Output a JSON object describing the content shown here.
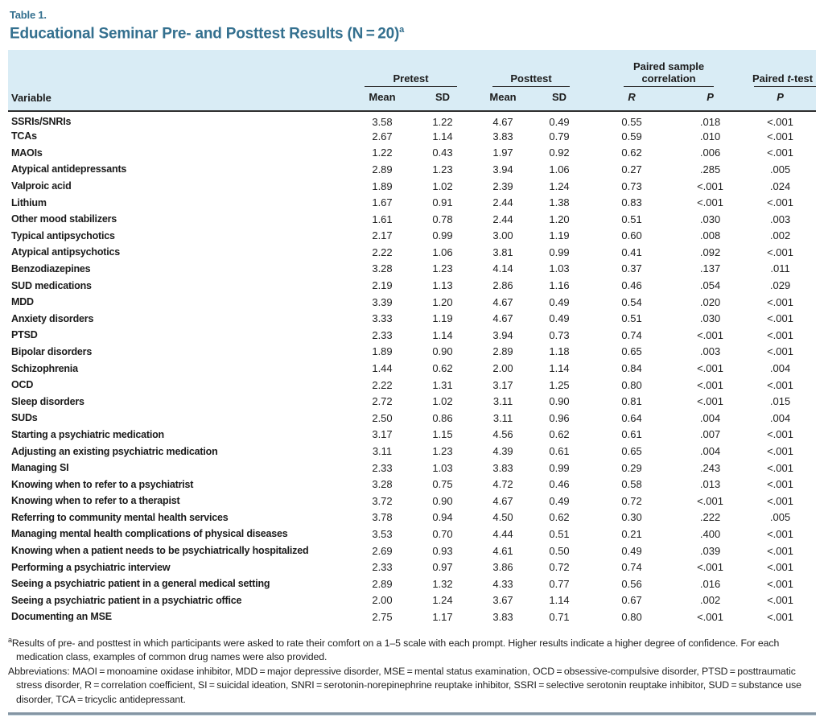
{
  "table_label": "Table 1.",
  "title": {
    "text": "Educational Seminar Pre- and Posttest Results (N = 20)",
    "sup": "a"
  },
  "header": {
    "variable": "Variable",
    "groups": [
      "Pretest",
      "Posttest",
      "Paired sample correlation",
      {
        "pre": "Paired ",
        "it": "t",
        "post": "-test"
      }
    ],
    "subcols": [
      "Mean",
      "SD",
      "Mean",
      "SD",
      "R",
      "P",
      "P"
    ]
  },
  "table": {
    "rows": [
      {
        "variable": "SSRIs/SNRIs",
        "values": [
          "3.58",
          "1.22",
          "4.67",
          "0.49",
          "0.55",
          ".018",
          "<.001"
        ]
      },
      {
        "variable": "TCAs",
        "values": [
          "2.67",
          "1.14",
          "3.83",
          "0.79",
          "0.59",
          ".010",
          "<.001"
        ]
      },
      {
        "variable": "MAOIs",
        "values": [
          "1.22",
          "0.43",
          "1.97",
          "0.92",
          "0.62",
          ".006",
          "<.001"
        ]
      },
      {
        "variable": "Atypical antidepressants",
        "values": [
          "2.89",
          "1.23",
          "3.94",
          "1.06",
          "0.27",
          ".285",
          ".005"
        ]
      },
      {
        "variable": "Valproic acid",
        "values": [
          "1.89",
          "1.02",
          "2.39",
          "1.24",
          "0.73",
          "<.001",
          ".024"
        ]
      },
      {
        "variable": "Lithium",
        "values": [
          "1.67",
          "0.91",
          "2.44",
          "1.38",
          "0.83",
          "<.001",
          "<.001"
        ]
      },
      {
        "variable": "Other mood stabilizers",
        "values": [
          "1.61",
          "0.78",
          "2.44",
          "1.20",
          "0.51",
          ".030",
          ".003"
        ]
      },
      {
        "variable": "Typical antipsychotics",
        "values": [
          "2.17",
          "0.99",
          "3.00",
          "1.19",
          "0.60",
          ".008",
          ".002"
        ]
      },
      {
        "variable": "Atypical antipsychotics",
        "values": [
          "2.22",
          "1.06",
          "3.81",
          "0.99",
          "0.41",
          ".092",
          "<.001"
        ]
      },
      {
        "variable": "Benzodiazepines",
        "values": [
          "3.28",
          "1.23",
          "4.14",
          "1.03",
          "0.37",
          ".137",
          ".011"
        ]
      },
      {
        "variable": "SUD medications",
        "values": [
          "2.19",
          "1.13",
          "2.86",
          "1.16",
          "0.46",
          ".054",
          ".029"
        ]
      },
      {
        "variable": "MDD",
        "values": [
          "3.39",
          "1.20",
          "4.67",
          "0.49",
          "0.54",
          ".020",
          "<.001"
        ]
      },
      {
        "variable": "Anxiety disorders",
        "values": [
          "3.33",
          "1.19",
          "4.67",
          "0.49",
          "0.51",
          ".030",
          "<.001"
        ]
      },
      {
        "variable": "PTSD",
        "values": [
          "2.33",
          "1.14",
          "3.94",
          "0.73",
          "0.74",
          "<.001",
          "<.001"
        ]
      },
      {
        "variable": "Bipolar disorders",
        "values": [
          "1.89",
          "0.90",
          "2.89",
          "1.18",
          "0.65",
          ".003",
          "<.001"
        ]
      },
      {
        "variable": "Schizophrenia",
        "values": [
          "1.44",
          "0.62",
          "2.00",
          "1.14",
          "0.84",
          "<.001",
          ".004"
        ]
      },
      {
        "variable": "OCD",
        "values": [
          "2.22",
          "1.31",
          "3.17",
          "1.25",
          "0.80",
          "<.001",
          "<.001"
        ]
      },
      {
        "variable": "Sleep disorders",
        "values": [
          "2.72",
          "1.02",
          "3.11",
          "0.90",
          "0.81",
          "<.001",
          ".015"
        ]
      },
      {
        "variable": "SUDs",
        "values": [
          "2.50",
          "0.86",
          "3.11",
          "0.96",
          "0.64",
          ".004",
          ".004"
        ]
      },
      {
        "variable": "Starting a psychiatric medication",
        "values": [
          "3.17",
          "1.15",
          "4.56",
          "0.62",
          "0.61",
          ".007",
          "<.001"
        ]
      },
      {
        "variable": "Adjusting an existing psychiatric medication",
        "values": [
          "3.11",
          "1.23",
          "4.39",
          "0.61",
          "0.65",
          ".004",
          "<.001"
        ]
      },
      {
        "variable": "Managing SI",
        "values": [
          "2.33",
          "1.03",
          "3.83",
          "0.99",
          "0.29",
          ".243",
          "<.001"
        ]
      },
      {
        "variable": "Knowing when to refer to a psychiatrist",
        "values": [
          "3.28",
          "0.75",
          "4.72",
          "0.46",
          "0.58",
          ".013",
          "<.001"
        ]
      },
      {
        "variable": "Knowing when to refer to a therapist",
        "values": [
          "3.72",
          "0.90",
          "4.67",
          "0.49",
          "0.72",
          "<.001",
          "<.001"
        ]
      },
      {
        "variable": "Referring to community mental health services",
        "values": [
          "3.78",
          "0.94",
          "4.50",
          "0.62",
          "0.30",
          ".222",
          ".005"
        ]
      },
      {
        "variable": "Managing mental health complications of physical diseases",
        "values": [
          "3.53",
          "0.70",
          "4.44",
          "0.51",
          "0.21",
          ".400",
          "<.001"
        ]
      },
      {
        "variable": "Knowing when a patient needs to be psychiatrically hospitalized",
        "values": [
          "2.69",
          "0.93",
          "4.61",
          "0.50",
          "0.49",
          ".039",
          "<.001"
        ]
      },
      {
        "variable": "Performing a psychiatric interview",
        "values": [
          "2.33",
          "0.97",
          "3.86",
          "0.72",
          "0.74",
          "<.001",
          "<.001"
        ]
      },
      {
        "variable": "Seeing a psychiatric patient in a general medical setting",
        "values": [
          "2.89",
          "1.32",
          "4.33",
          "0.77",
          "0.56",
          ".016",
          "<.001"
        ]
      },
      {
        "variable": "Seeing a psychiatric patient in a psychiatric office",
        "values": [
          "2.00",
          "1.24",
          "3.67",
          "1.14",
          "0.67",
          ".002",
          "<.001"
        ]
      },
      {
        "variable": "Documenting an MSE",
        "values": [
          "2.75",
          "1.17",
          "3.83",
          "0.71",
          "0.80",
          "<.001",
          "<.001"
        ]
      }
    ]
  },
  "footnotes": {
    "marker": "a",
    "results": "Results of pre- and posttest in which participants were asked to rate their comfort on a 1–5 scale with each prompt. Higher results indicate a higher degree of confidence. For each medication class, examples of common drug names were also provided.",
    "abbreviations": "Abbreviations: MAOI = monoamine oxidase inhibitor, MDD = major depressive disorder, MSE = mental status examination, OCD = obsessive-compulsive disorder, PTSD = posttraumatic stress disorder, R = correlation coefficient, SI = suicidal ideation, SNRI = serotonin-norepinephrine reuptake inhibitor, SSRI = selective serotonin reuptake inhibitor, SUD = substance use disorder, TCA = tricyclic antidepressant."
  },
  "colors": {
    "title_teal": "#34708f",
    "header_bg": "#d9ecf5",
    "rule_dark": "#2e2e2e",
    "bottom_bar": "#8495a3"
  },
  "chart_data": {
    "type": "table",
    "title": "Educational Seminar Pre- and Posttest Results (N = 20)",
    "columns": [
      "Variable",
      "Pretest Mean",
      "Pretest SD",
      "Posttest Mean",
      "Posttest SD",
      "Paired sample correlation R",
      "Paired sample correlation P",
      "Paired t-test P"
    ],
    "rows": [
      [
        "SSRIs/SNRIs",
        "3.58",
        "1.22",
        "4.67",
        "0.49",
        "0.55",
        ".018",
        "<.001"
      ],
      [
        "TCAs",
        "2.67",
        "1.14",
        "3.83",
        "0.79",
        "0.59",
        ".010",
        "<.001"
      ],
      [
        "MAOIs",
        "1.22",
        "0.43",
        "1.97",
        "0.92",
        "0.62",
        ".006",
        "<.001"
      ],
      [
        "Atypical antidepressants",
        "2.89",
        "1.23",
        "3.94",
        "1.06",
        "0.27",
        ".285",
        ".005"
      ],
      [
        "Valproic acid",
        "1.89",
        "1.02",
        "2.39",
        "1.24",
        "0.73",
        "<.001",
        ".024"
      ],
      [
        "Lithium",
        "1.67",
        "0.91",
        "2.44",
        "1.38",
        "0.83",
        "<.001",
        "<.001"
      ],
      [
        "Other mood stabilizers",
        "1.61",
        "0.78",
        "2.44",
        "1.20",
        "0.51",
        ".030",
        ".003"
      ],
      [
        "Typical antipsychotics",
        "2.17",
        "0.99",
        "3.00",
        "1.19",
        "0.60",
        ".008",
        ".002"
      ],
      [
        "Atypical antipsychotics",
        "2.22",
        "1.06",
        "3.81",
        "0.99",
        "0.41",
        ".092",
        "<.001"
      ],
      [
        "Benzodiazepines",
        "3.28",
        "1.23",
        "4.14",
        "1.03",
        "0.37",
        ".137",
        ".011"
      ],
      [
        "SUD medications",
        "2.19",
        "1.13",
        "2.86",
        "1.16",
        "0.46",
        ".054",
        ".029"
      ],
      [
        "MDD",
        "3.39",
        "1.20",
        "4.67",
        "0.49",
        "0.54",
        ".020",
        "<.001"
      ],
      [
        "Anxiety disorders",
        "3.33",
        "1.19",
        "4.67",
        "0.49",
        "0.51",
        ".030",
        "<.001"
      ],
      [
        "PTSD",
        "2.33",
        "1.14",
        "3.94",
        "0.73",
        "0.74",
        "<.001",
        "<.001"
      ],
      [
        "Bipolar disorders",
        "1.89",
        "0.90",
        "2.89",
        "1.18",
        "0.65",
        ".003",
        "<.001"
      ],
      [
        "Schizophrenia",
        "1.44",
        "0.62",
        "2.00",
        "1.14",
        "0.84",
        "<.001",
        ".004"
      ],
      [
        "OCD",
        "2.22",
        "1.31",
        "3.17",
        "1.25",
        "0.80",
        "<.001",
        "<.001"
      ],
      [
        "Sleep disorders",
        "2.72",
        "1.02",
        "3.11",
        "0.90",
        "0.81",
        "<.001",
        ".015"
      ],
      [
        "SUDs",
        "2.50",
        "0.86",
        "3.11",
        "0.96",
        "0.64",
        ".004",
        ".004"
      ],
      [
        "Starting a psychiatric medication",
        "3.17",
        "1.15",
        "4.56",
        "0.62",
        "0.61",
        ".007",
        "<.001"
      ],
      [
        "Adjusting an existing psychiatric medication",
        "3.11",
        "1.23",
        "4.39",
        "0.61",
        "0.65",
        ".004",
        "<.001"
      ],
      [
        "Managing SI",
        "2.33",
        "1.03",
        "3.83",
        "0.99",
        "0.29",
        ".243",
        "<.001"
      ],
      [
        "Knowing when to refer to a psychiatrist",
        "3.28",
        "0.75",
        "4.72",
        "0.46",
        "0.58",
        ".013",
        "<.001"
      ],
      [
        "Knowing when to refer to a therapist",
        "3.72",
        "0.90",
        "4.67",
        "0.49",
        "0.72",
        "<.001",
        "<.001"
      ],
      [
        "Referring to community mental health services",
        "3.78",
        "0.94",
        "4.50",
        "0.62",
        "0.30",
        ".222",
        ".005"
      ],
      [
        "Managing mental health complications of physical diseases",
        "3.53",
        "0.70",
        "4.44",
        "0.51",
        "0.21",
        ".400",
        "<.001"
      ],
      [
        "Knowing when a patient needs to be psychiatrically hospitalized",
        "2.69",
        "0.93",
        "4.61",
        "0.50",
        "0.49",
        ".039",
        "<.001"
      ],
      [
        "Performing a psychiatric interview",
        "2.33",
        "0.97",
        "3.86",
        "0.72",
        "0.74",
        "<.001",
        "<.001"
      ],
      [
        "Seeing a psychiatric patient in a general medical setting",
        "2.89",
        "1.32",
        "4.33",
        "0.77",
        "0.56",
        ".016",
        "<.001"
      ],
      [
        "Seeing a psychiatric patient in a psychiatric office",
        "2.00",
        "1.24",
        "3.67",
        "1.14",
        "0.67",
        ".002",
        "<.001"
      ],
      [
        "Documenting an MSE",
        "2.75",
        "1.17",
        "3.83",
        "0.71",
        "0.80",
        "<.001",
        "<.001"
      ]
    ]
  }
}
